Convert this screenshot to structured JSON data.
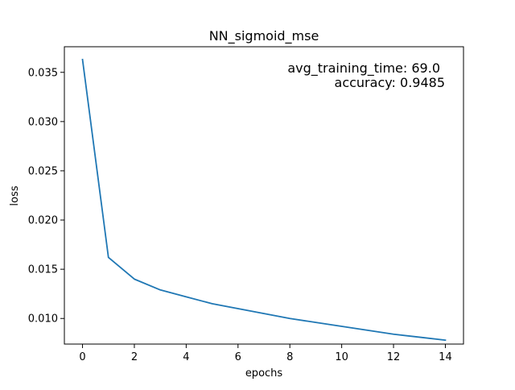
{
  "chart_data": {
    "type": "line",
    "title": "NN_sigmoid_mse",
    "xlabel": "epochs",
    "ylabel": "loss",
    "xlim": [
      -0.7,
      14.7
    ],
    "ylim": [
      0.0074,
      0.0376
    ],
    "grid": false,
    "series": [
      {
        "color": "#1f77b4",
        "x": [
          0,
          1,
          2,
          3,
          4,
          5,
          6,
          7,
          8,
          9,
          10,
          11,
          12,
          13,
          14
        ],
        "y": [
          0.0363,
          0.0162,
          0.014,
          0.0129,
          0.0122,
          0.0115,
          0.011,
          0.0105,
          0.01,
          0.0096,
          0.0092,
          0.0088,
          0.0084,
          0.0081,
          0.0078
        ]
      }
    ],
    "x_ticks": [
      {
        "value": 0,
        "label": "0"
      },
      {
        "value": 2,
        "label": "2"
      },
      {
        "value": 4,
        "label": "4"
      },
      {
        "value": 6,
        "label": "6"
      },
      {
        "value": 8,
        "label": "8"
      },
      {
        "value": 10,
        "label": "10"
      },
      {
        "value": 12,
        "label": "12"
      },
      {
        "value": 14,
        "label": "14"
      }
    ],
    "y_ticks": [
      {
        "value": 0.01,
        "label": "0.010"
      },
      {
        "value": 0.015,
        "label": "0.015"
      },
      {
        "value": 0.02,
        "label": "0.020"
      },
      {
        "value": 0.025,
        "label": "0.025"
      },
      {
        "value": 0.03,
        "label": "0.030"
      },
      {
        "value": 0.035,
        "label": "0.035"
      }
    ],
    "annotations": [
      "avg_training_time: 69.0",
      "accuracy: 0.9485"
    ]
  }
}
